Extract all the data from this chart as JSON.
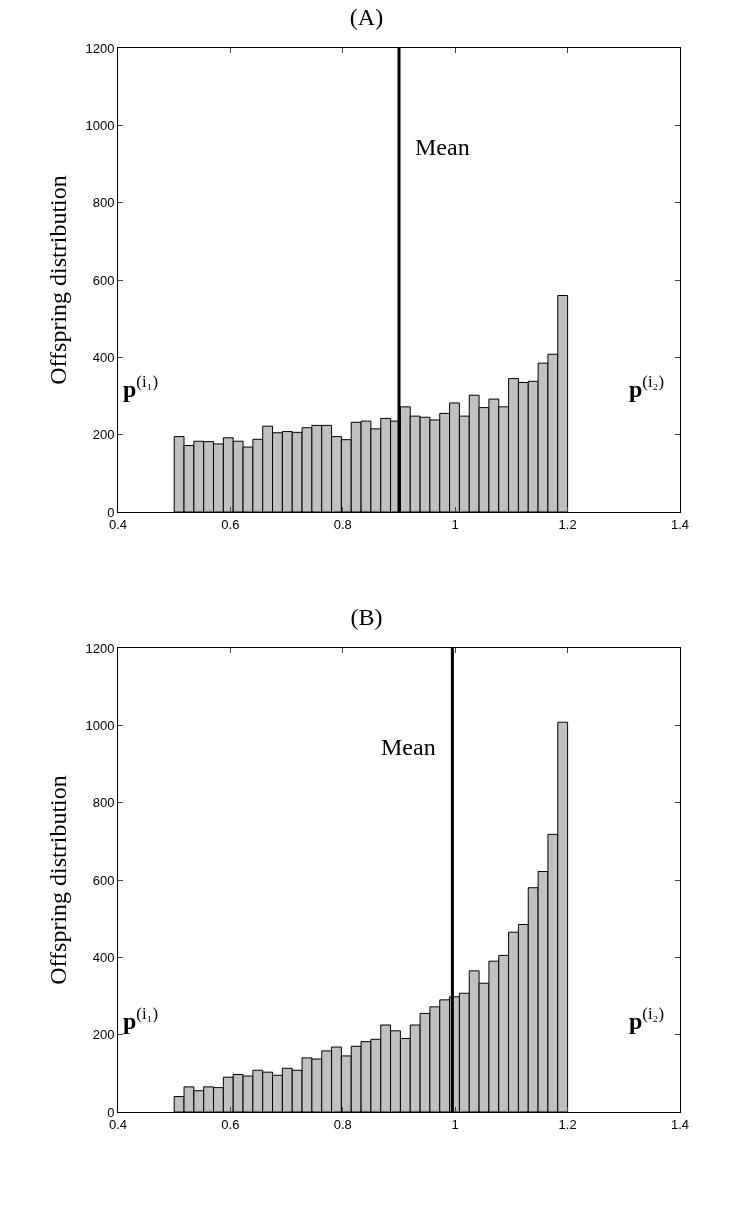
{
  "chart_data": [
    {
      "type": "histogram",
      "title": "(A)",
      "ylabel": "Offspring distribution",
      "xlim": [
        0.4,
        1.4
      ],
      "xticks": [
        0.4,
        0.6,
        0.8,
        1,
        1.2,
        1.4
      ],
      "ylim": [
        0,
        1200
      ],
      "yticks": [
        0,
        200,
        400,
        600,
        800,
        1000,
        1200
      ],
      "grid": false,
      "annotations": [
        "p$^{(i₁)}$",
        "p$^{(i₂)}$"
      ],
      "ref_lines": [
        {
          "axis": "x",
          "value": 0.9,
          "label": "Mean",
          "color": "#000000"
        }
      ],
      "color": "#c0c0c0",
      "bins": [
        0.5,
        0.5175,
        0.535,
        0.5525,
        0.57,
        0.5875,
        0.605,
        0.6225,
        0.64,
        0.6575,
        0.675,
        0.6925,
        0.71,
        0.7275,
        0.745,
        0.7625,
        0.78,
        0.7975,
        0.815,
        0.8325,
        0.85,
        0.8675,
        0.885,
        0.9025,
        0.92,
        0.9375,
        0.955,
        0.9725,
        0.99,
        1.0075,
        1.025,
        1.0425,
        1.06,
        1.0775,
        1.095,
        1.1125,
        1.13,
        1.1475,
        1.165,
        1.1825,
        1.2
      ],
      "values": [
        195,
        172,
        183,
        182,
        176,
        192,
        183,
        168,
        188,
        222,
        205,
        208,
        206,
        218,
        224,
        224,
        195,
        187,
        232,
        235,
        215,
        242,
        235,
        272,
        248,
        245,
        238,
        255,
        282,
        248,
        302,
        270,
        292,
        272,
        345,
        335,
        338,
        385,
        408,
        560
      ]
    },
    {
      "type": "histogram",
      "title": "(B)",
      "ylabel": "Offspring distribution",
      "xlim": [
        0.4,
        1.4
      ],
      "xticks": [
        0.4,
        0.6,
        0.8,
        1,
        1.2,
        1.4
      ],
      "ylim": [
        0,
        1200
      ],
      "yticks": [
        0,
        200,
        400,
        600,
        800,
        1000,
        1200
      ],
      "grid": false,
      "annotations": [
        "p$^{(i₁)}$",
        "p$^{(i₂)}$"
      ],
      "ref_lines": [
        {
          "axis": "x",
          "value": 0.995,
          "label": "Mean",
          "color": "#000000"
        }
      ],
      "color": "#c0c0c0",
      "bins": [
        0.5,
        0.5175,
        0.535,
        0.5525,
        0.57,
        0.5875,
        0.605,
        0.6225,
        0.64,
        0.6575,
        0.675,
        0.6925,
        0.71,
        0.7275,
        0.745,
        0.7625,
        0.78,
        0.7975,
        0.815,
        0.8325,
        0.85,
        0.8675,
        0.885,
        0.9025,
        0.92,
        0.9375,
        0.955,
        0.9725,
        0.99,
        1.0075,
        1.025,
        1.0425,
        1.06,
        1.0775,
        1.095,
        1.1125,
        1.13,
        1.1475,
        1.165,
        1.1825,
        1.2
      ],
      "values": [
        40,
        65,
        55,
        65,
        63,
        90,
        97,
        93,
        108,
        103,
        95,
        113,
        108,
        140,
        137,
        158,
        168,
        145,
        170,
        182,
        188,
        225,
        210,
        190,
        225,
        255,
        272,
        290,
        298,
        307,
        365,
        333,
        390,
        405,
        465,
        485,
        580,
        622,
        718,
        1008
      ]
    }
  ]
}
